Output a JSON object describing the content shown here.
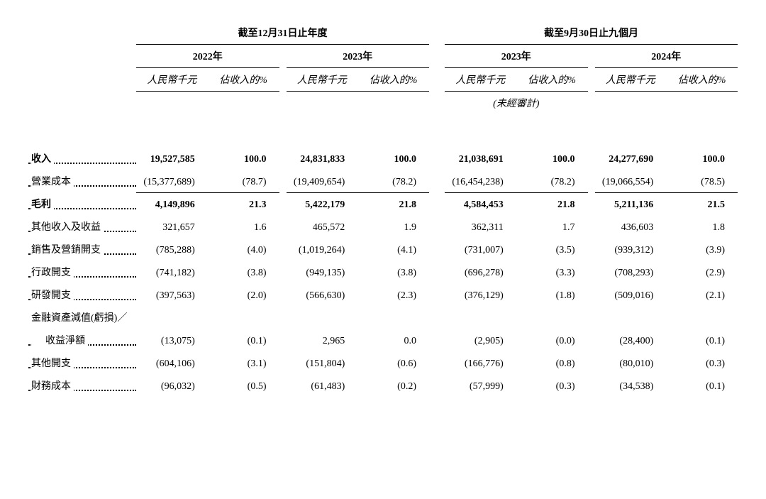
{
  "headers": {
    "period1_title": "截至12月31日止年度",
    "period2_title": "截至9月30日止九個月",
    "years": {
      "y2022": "2022年",
      "y2023": "2023年",
      "y2023b": "2023年",
      "y2024": "2024年"
    },
    "sub_rmb": "人民幣千元",
    "sub_pct": "佔收入的%",
    "unaudited": "(未經審計)"
  },
  "rows": {
    "revenue": {
      "label": "收入",
      "bold": true,
      "v": {
        "a": "19,527,585",
        "ap": "100.0",
        "b": "24,831,833",
        "bp": "100.0",
        "c": "21,038,691",
        "cp": "100.0",
        "d": "24,277,690",
        "dp": "100.0"
      }
    },
    "cogs": {
      "label": "營業成本",
      "v": {
        "a": "(15,377,689)",
        "ap": "(78.7)",
        "b": "(19,409,654)",
        "bp": "(78.2)",
        "c": "(16,454,238)",
        "cp": "(78.2)",
        "d": "(19,066,554)",
        "dp": "(78.5)"
      }
    },
    "gross": {
      "label": "毛利",
      "bold": true,
      "v": {
        "a": "4,149,896",
        "ap": "21.3",
        "b": "5,422,179",
        "bp": "21.8",
        "c": "4,584,453",
        "cp": "21.8",
        "d": "5,211,136",
        "dp": "21.5"
      }
    },
    "other_income": {
      "label": "其他收入及收益",
      "v": {
        "a": "321,657",
        "ap": "1.6",
        "b": "465,572",
        "bp": "1.9",
        "c": "362,311",
        "cp": "1.7",
        "d": "436,603",
        "dp": "1.8"
      }
    },
    "selling": {
      "label": "銷售及營銷開支",
      "v": {
        "a": "(785,288)",
        "ap": "(4.0)",
        "b": "(1,019,264)",
        "bp": "(4.1)",
        "c": "(731,007)",
        "cp": "(3.5)",
        "d": "(939,312)",
        "dp": "(3.9)"
      }
    },
    "admin": {
      "label": "行政開支",
      "v": {
        "a": "(741,182)",
        "ap": "(3.8)",
        "b": "(949,135)",
        "bp": "(3.8)",
        "c": "(696,278)",
        "cp": "(3.3)",
        "d": "(708,293)",
        "dp": "(2.9)"
      }
    },
    "rd": {
      "label": "研發開支",
      "v": {
        "a": "(397,563)",
        "ap": "(2.0)",
        "b": "(566,630)",
        "bp": "(2.3)",
        "c": "(376,129)",
        "cp": "(1.8)",
        "d": "(509,016)",
        "dp": "(2.1)"
      }
    },
    "impair_a": {
      "label": "金融資產減值(虧損)／"
    },
    "impair_b": {
      "label": "收益淨額",
      "v": {
        "a": "(13,075)",
        "ap": "(0.1)",
        "b": "2,965",
        "bp": "0.0",
        "c": "(2,905)",
        "cp": "(0.0)",
        "d": "(28,400)",
        "dp": "(0.1)"
      }
    },
    "other_exp": {
      "label": "其他開支",
      "v": {
        "a": "(604,106)",
        "ap": "(3.1)",
        "b": "(151,804)",
        "bp": "(0.6)",
        "c": "(166,776)",
        "cp": "(0.8)",
        "d": "(80,010)",
        "dp": "(0.3)"
      }
    },
    "finance": {
      "label": "財務成本",
      "v": {
        "a": "(96,032)",
        "ap": "(0.5)",
        "b": "(61,483)",
        "bp": "(0.2)",
        "c": "(57,999)",
        "cp": "(0.3)",
        "d": "(34,538)",
        "dp": "(0.1)"
      }
    }
  }
}
